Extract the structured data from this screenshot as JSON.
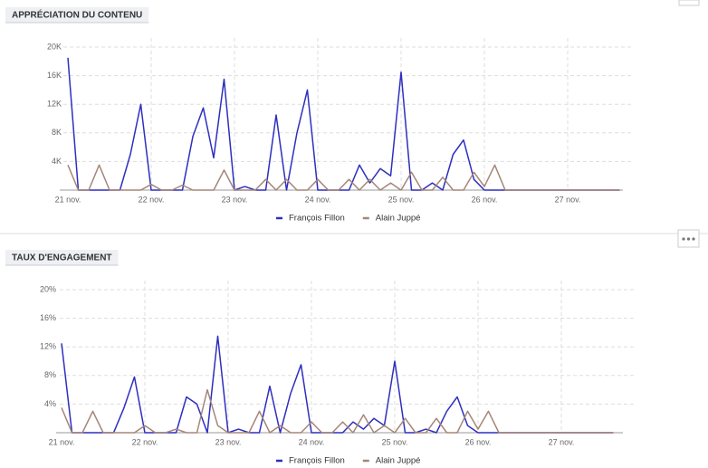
{
  "chart_data": [
    {
      "type": "line",
      "title": "APPRÉCIATION DU CONTENU",
      "categories": [
        "21 nov.",
        null,
        null,
        null,
        null,
        null,
        null,
        null,
        "22 nov.",
        null,
        null,
        null,
        null,
        null,
        null,
        null,
        "23 nov.",
        null,
        null,
        null,
        null,
        null,
        null,
        null,
        "24 nov.",
        null,
        null,
        null,
        null,
        null,
        null,
        null,
        "25 nov.",
        null,
        null,
        null,
        null,
        null,
        null,
        null,
        "26 nov.",
        null,
        null,
        null,
        null,
        null,
        null,
        null,
        "27 nov.",
        null,
        null,
        null,
        null,
        null
      ],
      "series": [
        {
          "name": "François Fillon",
          "color": "#2e2fbf",
          "values": [
            18500,
            0,
            0,
            0,
            0,
            0,
            5000,
            12000,
            0,
            0,
            0,
            0,
            7500,
            11500,
            4500,
            15500,
            0,
            500,
            0,
            0,
            10500,
            0,
            8000,
            14000,
            0,
            0,
            0,
            0,
            3500,
            1000,
            3000,
            2000,
            16500,
            0,
            0,
            1000,
            0,
            5000,
            7000,
            1500,
            0,
            0,
            0,
            0,
            0,
            0,
            0,
            0,
            0,
            0,
            0,
            0,
            0,
            0
          ]
        },
        {
          "name": "Alain Juppé",
          "color": "#a58678",
          "values": [
            3500,
            0,
            0,
            3500,
            0,
            0,
            0,
            0,
            800,
            0,
            0,
            700,
            0,
            0,
            0,
            2800,
            0,
            0,
            0,
            1500,
            0,
            1500,
            0,
            0,
            1500,
            0,
            0,
            1500,
            0,
            1500,
            0,
            1000,
            0,
            2500,
            0,
            0,
            1800,
            0,
            0,
            2500,
            500,
            3500,
            0,
            0,
            0,
            0,
            0,
            0,
            0,
            0,
            0,
            0,
            0,
            0
          ]
        }
      ],
      "ylim": [
        0,
        20000
      ],
      "yticks": [
        {
          "value": 4000,
          "label": "4K"
        },
        {
          "value": 8000,
          "label": "8K"
        },
        {
          "value": 12000,
          "label": "12K"
        },
        {
          "value": 16000,
          "label": "16K"
        },
        {
          "value": 20000,
          "label": "20K"
        }
      ],
      "grid": true,
      "legend": "bottom"
    },
    {
      "type": "line",
      "title": "TAUX D'ENGAGEMENT",
      "categories": [
        "21 nov.",
        null,
        null,
        null,
        null,
        null,
        null,
        null,
        "22 nov.",
        null,
        null,
        null,
        null,
        null,
        null,
        null,
        "23 nov.",
        null,
        null,
        null,
        null,
        null,
        null,
        null,
        "24 nov.",
        null,
        null,
        null,
        null,
        null,
        null,
        null,
        "25 nov.",
        null,
        null,
        null,
        null,
        null,
        null,
        null,
        "26 nov.",
        null,
        null,
        null,
        null,
        null,
        null,
        null,
        "27 nov.",
        null,
        null,
        null,
        null,
        null
      ],
      "series": [
        {
          "name": "François Fillon",
          "color": "#2e2fbf",
          "values": [
            12.5,
            0,
            0,
            0,
            0,
            0,
            3.5,
            7.8,
            0,
            0,
            0,
            0,
            5,
            4,
            0,
            13.5,
            0,
            0.5,
            0,
            0,
            6.5,
            0,
            5.5,
            9.5,
            0,
            0,
            0,
            0,
            1.5,
            0.5,
            2,
            1,
            10,
            0,
            0,
            0.5,
            0,
            3,
            5,
            1,
            0,
            0,
            0,
            0,
            0,
            0,
            0,
            0,
            0,
            0,
            0,
            0,
            0,
            0
          ]
        },
        {
          "name": "Alain Juppé",
          "color": "#a58678",
          "values": [
            3.5,
            0,
            0,
            3,
            0,
            0,
            0,
            0,
            1,
            0,
            0,
            0.5,
            0,
            0,
            6,
            1,
            0,
            0,
            0,
            3,
            0,
            1,
            0,
            0,
            1.5,
            0,
            0,
            1.5,
            0,
            2.5,
            0,
            1,
            0,
            2,
            0,
            0,
            2,
            0,
            0,
            3,
            0.5,
            3,
            0,
            0,
            0,
            0,
            0,
            0,
            0,
            0,
            0,
            0,
            0,
            0
          ]
        }
      ],
      "ylim": [
        0,
        20
      ],
      "yticks": [
        {
          "value": 4,
          "label": "4%"
        },
        {
          "value": 8,
          "label": "8%"
        },
        {
          "value": 12,
          "label": "12%"
        },
        {
          "value": 16,
          "label": "16%"
        },
        {
          "value": 20,
          "label": "20%"
        }
      ],
      "grid": true,
      "legend": "bottom"
    }
  ]
}
